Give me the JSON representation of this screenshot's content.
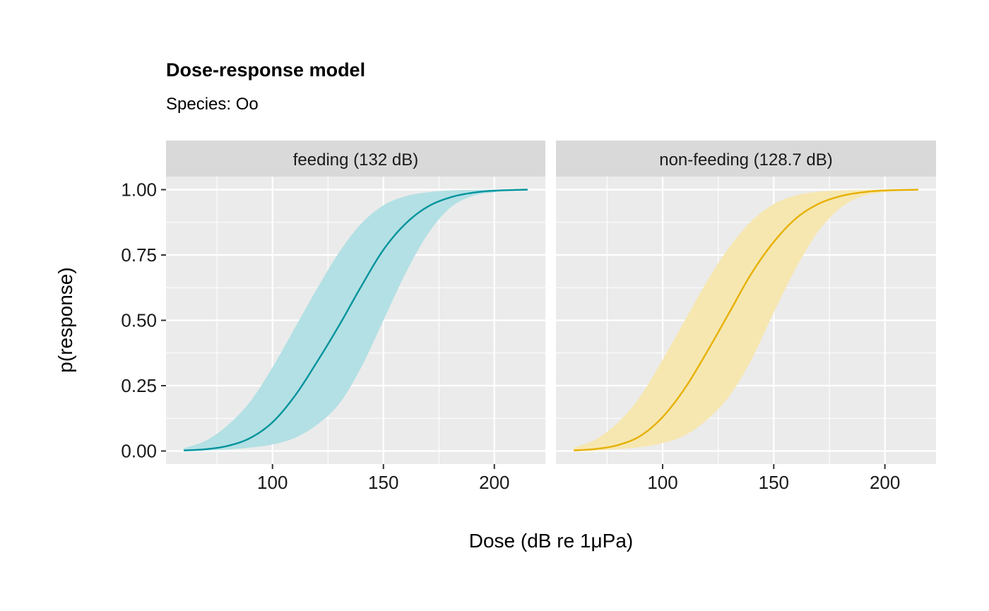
{
  "chart_data": {
    "type": "line",
    "title": "Dose-response model",
    "subtitle": "Species: Oo",
    "xlabel": "Dose (dB re 1μPa)",
    "ylabel": "p(response)",
    "xlim": [
      52,
      223
    ],
    "ylim": [
      -0.05,
      1.05
    ],
    "x_ticks": [
      100,
      150,
      200
    ],
    "x_tick_labels": [
      "100",
      "150",
      "200"
    ],
    "x_minor_ticks": [
      75,
      125,
      175
    ],
    "y_ticks": [
      0,
      0.25,
      0.5,
      0.75,
      1
    ],
    "y_tick_labels": [
      "0.00",
      "0.25",
      "0.50",
      "0.75",
      "1.00"
    ],
    "y_minor_ticks": [
      0.125,
      0.375,
      0.625,
      0.875
    ],
    "grid": true,
    "x_range": [
      60,
      215
    ],
    "panels": [
      {
        "strip": "feeding  (132 dB)",
        "color": "#00939c",
        "fill_color": "#b3e0e4",
        "series": [
          {
            "x": [
              60,
              70,
              80,
              90,
              100,
              110,
              120,
              130,
              140,
              150,
              160,
              170,
              180,
              190,
              200,
              210,
              215
            ],
            "values": [
              0.002,
              0.007,
              0.02,
              0.05,
              0.11,
              0.21,
              0.34,
              0.48,
              0.63,
              0.77,
              0.87,
              0.935,
              0.97,
              0.988,
              0.996,
              0.999,
              1.0
            ]
          },
          {
            "x": [
              60,
              70,
              80,
              90,
              100,
              110,
              120,
              130,
              140,
              150,
              160,
              170,
              180,
              190,
              200,
              210,
              215
            ],
            "values": [
              0.01,
              0.04,
              0.1,
              0.19,
              0.32,
              0.47,
              0.62,
              0.76,
              0.87,
              0.94,
              0.975,
              0.99,
              0.997,
              0.999,
              1.0,
              1.0,
              1.0
            ]
          },
          {
            "x": [
              60,
              70,
              80,
              90,
              100,
              110,
              120,
              130,
              140,
              150,
              160,
              170,
              180,
              190,
              200,
              210,
              215
            ],
            "values": [
              0.0005,
              0.002,
              0.006,
              0.013,
              0.025,
              0.05,
              0.1,
              0.18,
              0.32,
              0.5,
              0.68,
              0.83,
              0.93,
              0.975,
              0.99,
              0.998,
              1.0
            ]
          }
        ]
      },
      {
        "strip": "non-feeding  (128.7 dB)",
        "color": "#e6b000",
        "fill_color": "#f6e7b1",
        "series": [
          {
            "x": [
              60,
              70,
              80,
              90,
              100,
              110,
              120,
              130,
              140,
              150,
              160,
              170,
              180,
              190,
              200,
              210,
              215
            ],
            "values": [
              0.002,
              0.008,
              0.023,
              0.058,
              0.13,
              0.24,
              0.38,
              0.53,
              0.68,
              0.8,
              0.89,
              0.945,
              0.975,
              0.99,
              0.997,
              0.999,
              1.0
            ]
          },
          {
            "x": [
              60,
              70,
              80,
              90,
              100,
              110,
              120,
              130,
              140,
              150,
              160,
              170,
              180,
              190,
              200,
              210,
              215
            ],
            "values": [
              0.012,
              0.045,
              0.11,
              0.21,
              0.35,
              0.5,
              0.65,
              0.78,
              0.88,
              0.945,
              0.978,
              0.992,
              0.997,
              0.999,
              1.0,
              1.0,
              1.0
            ]
          },
          {
            "x": [
              60,
              70,
              80,
              90,
              100,
              110,
              120,
              130,
              140,
              150,
              160,
              170,
              180,
              190,
              200,
              210,
              215
            ],
            "values": [
              0.0005,
              0.002,
              0.007,
              0.015,
              0.03,
              0.06,
              0.12,
              0.21,
              0.35,
              0.53,
              0.7,
              0.84,
              0.93,
              0.975,
              0.99,
              0.998,
              1.0
            ]
          }
        ]
      }
    ]
  }
}
